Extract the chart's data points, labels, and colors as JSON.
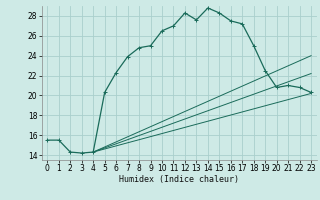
{
  "title": "",
  "xlabel": "Humidex (Indice chaleur)",
  "bg_color": "#ceeae6",
  "grid_color": "#aacfcc",
  "line_color": "#1a6b5a",
  "xlim": [
    -0.5,
    23.5
  ],
  "ylim": [
    13.5,
    29.0
  ],
  "xticks": [
    0,
    1,
    2,
    3,
    4,
    5,
    6,
    7,
    8,
    9,
    10,
    11,
    12,
    13,
    14,
    15,
    16,
    17,
    18,
    19,
    20,
    21,
    22,
    23
  ],
  "yticks": [
    14,
    16,
    18,
    20,
    22,
    24,
    26,
    28
  ],
  "main_series": [
    [
      0,
      15.5
    ],
    [
      1,
      15.5
    ],
    [
      2,
      14.3
    ],
    [
      3,
      14.2
    ],
    [
      4,
      14.3
    ],
    [
      5,
      20.3
    ],
    [
      6,
      22.3
    ],
    [
      7,
      23.9
    ],
    [
      8,
      24.8
    ],
    [
      9,
      25.0
    ],
    [
      10,
      26.5
    ],
    [
      11,
      27.0
    ],
    [
      12,
      28.3
    ],
    [
      13,
      27.6
    ],
    [
      14,
      28.8
    ],
    [
      15,
      28.3
    ],
    [
      16,
      27.5
    ],
    [
      17,
      27.2
    ],
    [
      18,
      25.0
    ],
    [
      19,
      22.5
    ],
    [
      20,
      20.8
    ],
    [
      21,
      21.0
    ],
    [
      22,
      20.8
    ],
    [
      23,
      20.3
    ]
  ],
  "diag_lines": [
    [
      [
        4,
        14.3
      ],
      [
        23,
        24.0
      ]
    ],
    [
      [
        4,
        14.3
      ],
      [
        23,
        22.2
      ]
    ],
    [
      [
        4,
        14.3
      ],
      [
        23,
        20.2
      ]
    ]
  ]
}
